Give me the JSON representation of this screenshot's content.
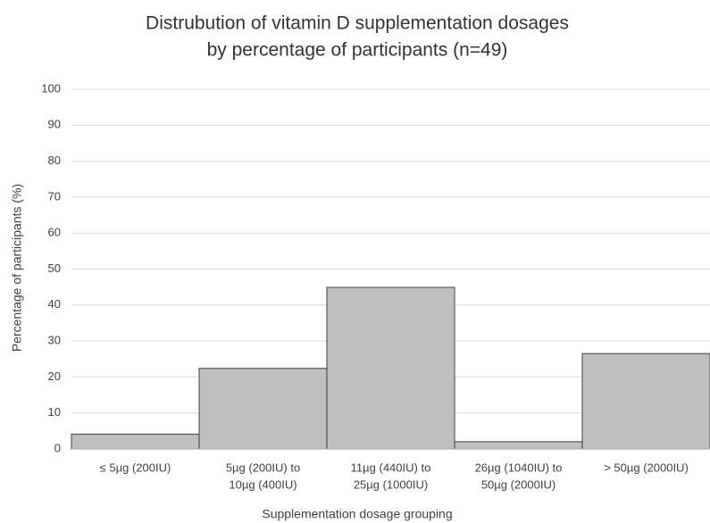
{
  "chart_data": {
    "type": "bar",
    "title": [
      "Distrubution of vitamin D supplementation dosages",
      "by percentage of participants (n=49)"
    ],
    "x_label": "Supplementation dosage grouping",
    "y_label": "Percentage of participants (%)",
    "categories": [
      [
        "≤ 5µg (200IU)"
      ],
      [
        "5µg (200IU) to",
        "10µg (400IU)"
      ],
      [
        "11µg (440IU) to",
        "25µg (1000IU)"
      ],
      [
        "26µg (1040IU) to",
        "50µg (2000IU)"
      ],
      [
        "> 50µg (2000IU)"
      ]
    ],
    "values": [
      4.1,
      22.4,
      44.9,
      2.0,
      26.5
    ],
    "color": "#bfbfbf",
    "ylim": [
      0,
      100
    ],
    "yticks": [
      0,
      10,
      20,
      30,
      40,
      50,
      60,
      70,
      80,
      90,
      100
    ],
    "grid": true
  }
}
